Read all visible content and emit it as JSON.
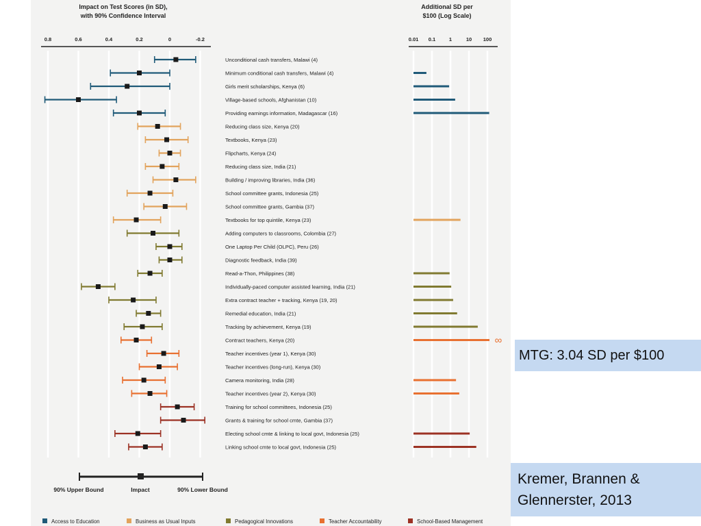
{
  "chart_data": {
    "type": "scatter",
    "left_panel": {
      "title_line1": "Impact on Test Scores (in SD),",
      "title_line2": "with 90% Confidence Interval",
      "xlim": [
        0.8,
        -0.2
      ],
      "ticks": [
        "0.8",
        "0.6",
        "0.4",
        "0.2",
        "0",
        "-0.2"
      ],
      "tick_values": [
        0.8,
        0.6,
        0.4,
        0.2,
        0,
        -0.2
      ]
    },
    "right_panel": {
      "title_line1": "Additional SD per",
      "title_line2": "$100 (Log Scale)",
      "scale": "log",
      "ticks": [
        "0.01",
        "0.1",
        "1",
        "10",
        "100"
      ],
      "tick_values": [
        0.01,
        0.1,
        1,
        10,
        100
      ],
      "infinity_symbol": "∞"
    },
    "programs": [
      {
        "name": "Unconditional cash transfers, Malawi (4)",
        "cat": 0,
        "impact": -0.04,
        "ci": [
          0.1,
          -0.17
        ],
        "cost_eff": null
      },
      {
        "name": "Minimum conditional cash transfers, Malawi (4)",
        "cat": 0,
        "impact": 0.2,
        "ci": [
          0.39,
          0.0
        ],
        "cost_eff": 0.05
      },
      {
        "name": "Girls merit scholarships, Kenya (6)",
        "cat": 0,
        "impact": 0.28,
        "ci": [
          0.52,
          0.0
        ],
        "cost_eff": 0.85
      },
      {
        "name": "Village-based schools, Afghanistan (10)",
        "cat": 0,
        "impact": 0.6,
        "ci": [
          0.82,
          0.35
        ],
        "cost_eff": 1.8
      },
      {
        "name": "Providing earnings information, Madagascar (16)",
        "cat": 0,
        "impact": 0.2,
        "ci": [
          0.37,
          0.03
        ],
        "cost_eff": 125
      },
      {
        "name": "Reducing class size, Kenya (20)",
        "cat": 1,
        "impact": 0.08,
        "ci": [
          0.21,
          -0.07
        ],
        "cost_eff": null
      },
      {
        "name": "Textbooks, Kenya (23)",
        "cat": 1,
        "impact": 0.02,
        "ci": [
          0.16,
          -0.12
        ],
        "cost_eff": null
      },
      {
        "name": "Flipcharts, Kenya (24)",
        "cat": 1,
        "impact": 0.0,
        "ci": [
          0.07,
          -0.07
        ],
        "cost_eff": null
      },
      {
        "name": "Reducing class size, India (21)",
        "cat": 1,
        "impact": 0.05,
        "ci": [
          0.16,
          -0.06
        ],
        "cost_eff": null
      },
      {
        "name": "Building / improving libraries, India (36)",
        "cat": 1,
        "impact": -0.04,
        "ci": [
          0.11,
          -0.17
        ],
        "cost_eff": null
      },
      {
        "name": "School committee grants, Indonesia (25)",
        "cat": 1,
        "impact": 0.13,
        "ci": [
          0.28,
          -0.02
        ],
        "cost_eff": null
      },
      {
        "name": "School committee grants, Gambia (37)",
        "cat": 1,
        "impact": 0.03,
        "ci": [
          0.17,
          -0.11
        ],
        "cost_eff": null
      },
      {
        "name": "Textbooks for top quintile, Kenya (23)",
        "cat": 1,
        "impact": 0.22,
        "ci": [
          0.37,
          0.06
        ],
        "cost_eff": 3.5
      },
      {
        "name": "Adding computers to classrooms, Colombia (27)",
        "cat": 2,
        "impact": 0.11,
        "ci": [
          0.28,
          -0.06
        ],
        "cost_eff": null
      },
      {
        "name": "One Laptop Per Child (OLPC), Peru (26)",
        "cat": 2,
        "impact": 0.0,
        "ci": [
          0.09,
          -0.08
        ],
        "cost_eff": null
      },
      {
        "name": "Diagnostic feedback, India (39)",
        "cat": 2,
        "impact": 0.0,
        "ci": [
          0.07,
          -0.08
        ],
        "cost_eff": null
      },
      {
        "name": "Read-a-Thon, Philippines (38)",
        "cat": 2,
        "impact": 0.13,
        "ci": [
          0.21,
          0.05
        ],
        "cost_eff": 0.9
      },
      {
        "name": "Individually-paced computer assisted learning, India (21)",
        "cat": 2,
        "impact": 0.47,
        "ci": [
          0.58,
          0.36
        ],
        "cost_eff": 1.1
      },
      {
        "name": "Extra contract teacher + tracking, Kenya (19, 20)",
        "cat": 2,
        "impact": 0.24,
        "ci": [
          0.4,
          0.09
        ],
        "cost_eff": 1.4
      },
      {
        "name": "Remedial education, India (21)",
        "cat": 2,
        "impact": 0.14,
        "ci": [
          0.22,
          0.06
        ],
        "cost_eff": 2.3
      },
      {
        "name": "Tracking by achievement, Kenya (19)",
        "cat": 2,
        "impact": 0.18,
        "ci": [
          0.3,
          0.05
        ],
        "cost_eff": 30
      },
      {
        "name": "Contract teachers, Kenya (20)",
        "cat": 3,
        "impact": 0.22,
        "ci": [
          0.32,
          0.12
        ],
        "cost_eff": "infinite"
      },
      {
        "name": "Teacher incentives (year 1), Kenya (30)",
        "cat": 3,
        "impact": 0.04,
        "ci": [
          0.15,
          -0.06
        ],
        "cost_eff": null
      },
      {
        "name": "Teacher incentives (long-run), Kenya (30)",
        "cat": 3,
        "impact": 0.07,
        "ci": [
          0.2,
          -0.05
        ],
        "cost_eff": null
      },
      {
        "name": "Camera monitoring, India (28)",
        "cat": 3,
        "impact": 0.17,
        "ci": [
          0.31,
          0.03
        ],
        "cost_eff": 2.0
      },
      {
        "name": "Teacher incentives (year 2), Kenya (30)",
        "cat": 3,
        "impact": 0.13,
        "ci": [
          0.25,
          0.02
        ],
        "cost_eff": 3.0
      },
      {
        "name": "Training for school committees, Indonesia (25)",
        "cat": 4,
        "impact": -0.05,
        "ci": [
          0.06,
          -0.16
        ],
        "cost_eff": null
      },
      {
        "name": "Grants & training for school cmte, Gambia (37)",
        "cat": 4,
        "impact": -0.09,
        "ci": [
          0.06,
          -0.23
        ],
        "cost_eff": null
      },
      {
        "name": "Electing school cmte & linking to local govt, Indonesia (25)",
        "cat": 4,
        "impact": 0.21,
        "ci": [
          0.36,
          0.06
        ],
        "cost_eff": 11
      },
      {
        "name": "Linking school cmte to local govt, Indonesia (25)",
        "cat": 4,
        "impact": 0.16,
        "ci": [
          0.27,
          0.05
        ],
        "cost_eff": 25
      }
    ],
    "categories": [
      {
        "name": "Access to Education",
        "color": "#1f5a78"
      },
      {
        "name": "Business as Usual Inputs",
        "color": "#e2a35c"
      },
      {
        "name": "Pedagogical Innovations",
        "color": "#807a30"
      },
      {
        "name": "Teacher Accountability",
        "color": "#e87030"
      },
      {
        "name": "School-Based Management",
        "color": "#9c3224"
      }
    ],
    "key_labels": {
      "upper": "90% Upper Bound",
      "impact": "Impact",
      "lower": "90% Lower Bound"
    }
  },
  "callouts": {
    "mtg": "MTG: 3.04 SD per $100",
    "citation_line1": "Kremer, Brannen &",
    "citation_line2": "Glennerster, 2013"
  }
}
